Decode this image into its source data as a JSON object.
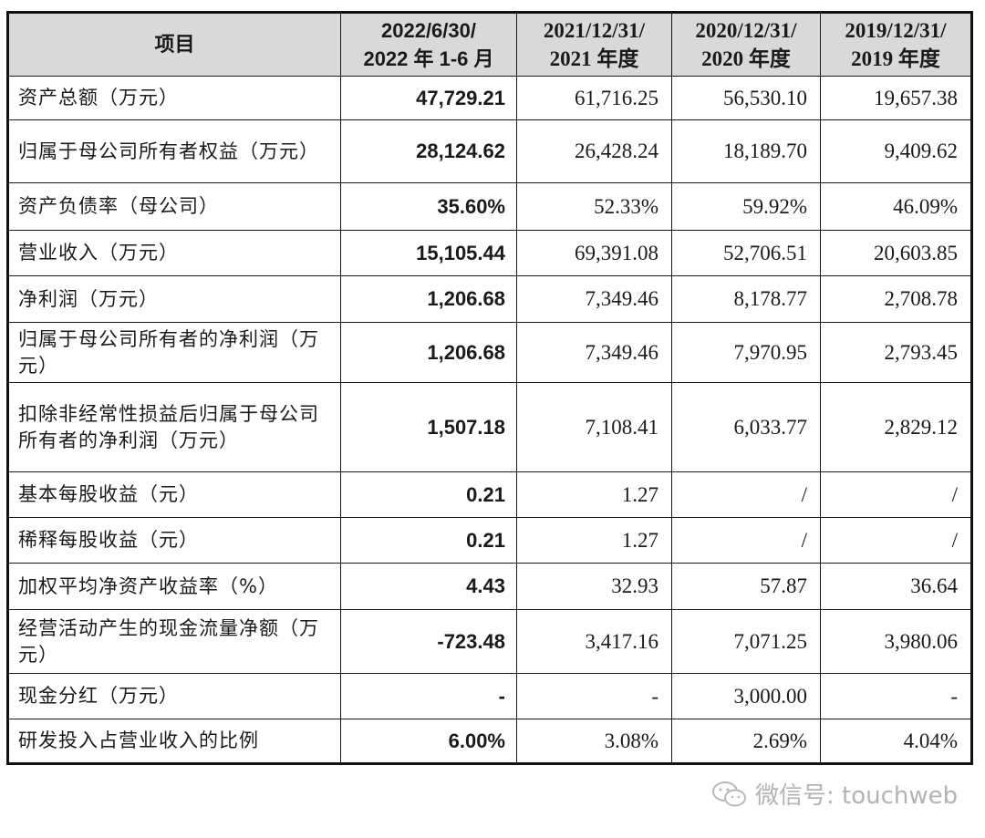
{
  "table": {
    "headers": [
      {
        "line1": "项目",
        "line2": ""
      },
      {
        "line1": "2022/6/30/",
        "line2": "2022 年 1-6 月"
      },
      {
        "line1": "2021/12/31/",
        "line2": "2021 年度"
      },
      {
        "line1": "2020/12/31/",
        "line2": "2020 年度"
      },
      {
        "line1": "2019/12/31/",
        "line2": "2019 年度"
      }
    ],
    "rows": [
      {
        "label": "资产总额（万元）",
        "values": [
          "47,729.21",
          "61,716.25",
          "56,530.10",
          "19,657.38"
        ]
      },
      {
        "label": "归属于母公司所有者权益（万元）",
        "values": [
          "28,124.62",
          "26,428.24",
          "18,189.70",
          "9,409.62"
        ]
      },
      {
        "label": "资产负债率（母公司）",
        "values": [
          "35.60%",
          "52.33%",
          "59.92%",
          "46.09%"
        ]
      },
      {
        "label": "营业收入（万元）",
        "values": [
          "15,105.44",
          "69,391.08",
          "52,706.51",
          "20,603.85"
        ]
      },
      {
        "label": "净利润（万元）",
        "values": [
          "1,206.68",
          "7,349.46",
          "8,178.77",
          "2,708.78"
        ]
      },
      {
        "label": "归属于母公司所有者的净利润（万元）",
        "values": [
          "1,206.68",
          "7,349.46",
          "7,970.95",
          "2,793.45"
        ]
      },
      {
        "label": "扣除非经常性损益后归属于母公司所有者的净利润（万元）",
        "values": [
          "1,507.18",
          "7,108.41",
          "6,033.77",
          "2,829.12"
        ]
      },
      {
        "label": "基本每股收益（元）",
        "values": [
          "0.21",
          "1.27",
          "/",
          "/"
        ]
      },
      {
        "label": "稀释每股收益（元）",
        "values": [
          "0.21",
          "1.27",
          "/",
          "/"
        ]
      },
      {
        "label": "加权平均净资产收益率（%）",
        "values": [
          "4.43",
          "32.93",
          "57.87",
          "36.64"
        ]
      },
      {
        "label": "经营活动产生的现金流量净额（万元）",
        "values": [
          "-723.48",
          "3,417.16",
          "7,071.25",
          "3,980.06"
        ]
      },
      {
        "label": "现金分红（万元）",
        "values": [
          "-",
          "-",
          "3,000.00",
          "-"
        ]
      },
      {
        "label": "研发投入占营业收入的比例",
        "values": [
          "6.00%",
          "3.08%",
          "2.69%",
          "4.04%"
        ]
      }
    ]
  },
  "watermark": {
    "icon": "wechat-icon",
    "text": "微信号: touchweb"
  }
}
